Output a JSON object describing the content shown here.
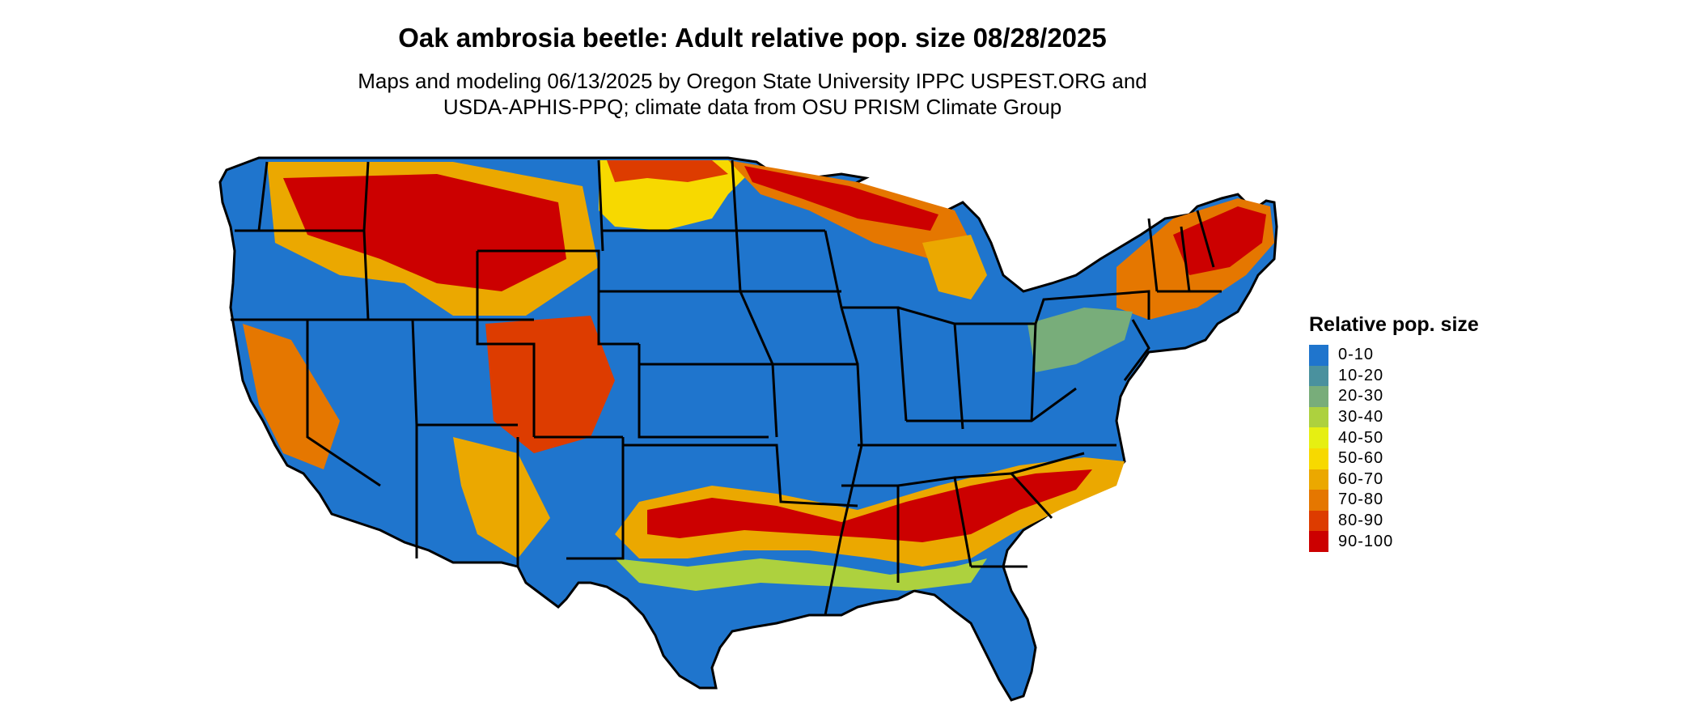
{
  "title": "Oak ambrosia beetle: Adult relative pop. size 08/28/2025",
  "subtitle_line1": "Maps and modeling 06/13/2025 by Oregon State University IPPC USPEST.ORG and",
  "subtitle_line2": "USDA-APHIS-PPQ; climate data from OSU PRISM Climate Group",
  "legend": {
    "title": "Relative pop. size",
    "items": [
      {
        "label": "0-10",
        "color": "#1f75cd"
      },
      {
        "label": "10-20",
        "color": "#4a919e"
      },
      {
        "label": "20-30",
        "color": "#78ad7a"
      },
      {
        "label": "30-40",
        "color": "#add13e"
      },
      {
        "label": "40-50",
        "color": "#e6ef12"
      },
      {
        "label": "50-60",
        "color": "#f7d900"
      },
      {
        "label": "60-70",
        "color": "#eba800"
      },
      {
        "label": "70-80",
        "color": "#e57700"
      },
      {
        "label": "80-90",
        "color": "#dd3c00"
      },
      {
        "label": "90-100",
        "color": "#cc0000"
      }
    ]
  },
  "colors": {
    "background": "#ffffff",
    "state_border": "#000000"
  }
}
